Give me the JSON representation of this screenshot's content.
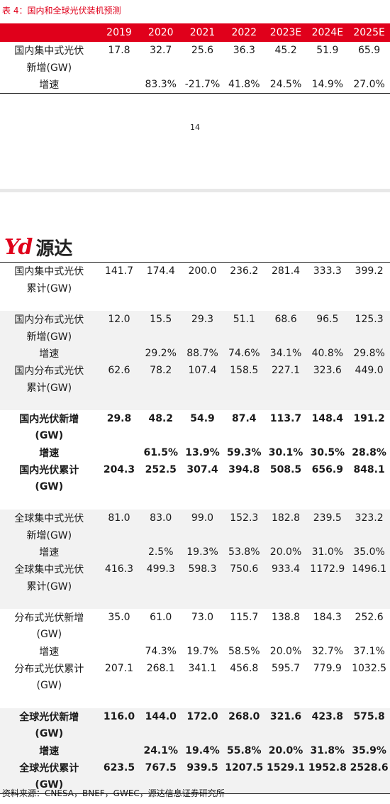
{
  "title": "表 4：国内和全球光伏装机预测",
  "page_number": "14",
  "logo": {
    "mark": "Yd",
    "name": "源达"
  },
  "headers": [
    "",
    "2019",
    "2020",
    "2021",
    "2022",
    "2023E",
    "2024E",
    "2025E"
  ],
  "top_rows": [
    {
      "l1": "国内集中式光伏",
      "l2": "新增(GW)",
      "v": [
        "17.8",
        "32.7",
        "25.6",
        "36.3",
        "45.2",
        "51.9",
        "65.9"
      ]
    },
    {
      "l1": "增速",
      "v": [
        "",
        "83.3%",
        "-21.7%",
        "41.8%",
        "24.5%",
        "14.9%",
        "27.0%"
      ]
    }
  ],
  "groups": [
    {
      "bg": "white",
      "bold": false,
      "rows": [
        {
          "l1": "国内集中式光伏",
          "l2": "累计(GW)",
          "v": [
            "141.7",
            "174.4",
            "200.0",
            "236.2",
            "281.4",
            "333.3",
            "399.2"
          ]
        }
      ]
    },
    {
      "bg": "grp",
      "bold": false,
      "rows": [
        {
          "l1": "国内分布式光伏",
          "l2": "新增(GW)",
          "v": [
            "12.0",
            "15.5",
            "29.3",
            "51.1",
            "68.6",
            "96.5",
            "125.3"
          ]
        },
        {
          "l1": "增速",
          "v": [
            "",
            "29.2%",
            "88.7%",
            "74.6%",
            "34.1%",
            "40.8%",
            "29.8%"
          ]
        },
        {
          "l1": "国内分布式光伏",
          "l2": "累计(GW)",
          "v": [
            "62.6",
            "78.2",
            "107.4",
            "158.5",
            "227.1",
            "323.6",
            "449.0"
          ]
        }
      ]
    },
    {
      "bg": "white",
      "bold": true,
      "rows": [
        {
          "l1": "国内光伏新增",
          "l2": "(GW)",
          "v": [
            "29.8",
            "48.2",
            "54.9",
            "87.4",
            "113.7",
            "148.4",
            "191.2"
          ]
        },
        {
          "l1": "增速",
          "v": [
            "",
            "61.5%",
            "13.9%",
            "59.3%",
            "30.1%",
            "30.5%",
            "28.8%"
          ]
        },
        {
          "l1": "国内光伏累计",
          "l2": "(GW)",
          "v": [
            "204.3",
            "252.5",
            "307.4",
            "394.8",
            "508.5",
            "656.9",
            "848.1"
          ]
        }
      ]
    },
    {
      "bg": "grp",
      "bold": false,
      "rows": [
        {
          "l1": "全球集中式光伏",
          "l2": "新增(GW)",
          "v": [
            "81.0",
            "83.0",
            "99.0",
            "152.3",
            "182.8",
            "239.5",
            "323.2"
          ]
        },
        {
          "l1": "增速",
          "v": [
            "",
            "2.5%",
            "19.3%",
            "53.8%",
            "20.0%",
            "31.0%",
            "35.0%"
          ]
        },
        {
          "l1": "全球集中式光伏",
          "l2": "累计(GW)",
          "v": [
            "416.3",
            "499.3",
            "598.3",
            "750.6",
            "933.4",
            "1172.9",
            "1496.1"
          ]
        }
      ]
    },
    {
      "bg": "white",
      "bold": false,
      "rows": [
        {
          "l1": "分布式光伏新增",
          "l2": "(GW)",
          "v": [
            "35.0",
            "61.0",
            "73.0",
            "115.7",
            "138.8",
            "184.3",
            "252.6"
          ]
        },
        {
          "l1": "增速",
          "v": [
            "",
            "74.3%",
            "19.7%",
            "58.5%",
            "20.0%",
            "32.7%",
            "37.1%"
          ]
        },
        {
          "l1": "分布式光伏累计",
          "l2": "(GW)",
          "v": [
            "207.1",
            "268.1",
            "341.1",
            "456.8",
            "595.7",
            "779.9",
            "1032.5"
          ]
        }
      ]
    },
    {
      "bg": "grp",
      "bold": true,
      "rows": [
        {
          "l1": "全球光伏新增",
          "l2": "(GW)",
          "v": [
            "116.0",
            "144.0",
            "172.0",
            "268.0",
            "321.6",
            "423.8",
            "575.8"
          ]
        },
        {
          "l1": "增速",
          "v": [
            "",
            "24.1%",
            "19.4%",
            "55.8%",
            "20.0%",
            "31.8%",
            "35.9%"
          ]
        },
        {
          "l1": "全球光伏累计",
          "l2": "(GW)",
          "v": [
            "623.5",
            "767.5",
            "939.5",
            "1207.5",
            "1529.1",
            "1952.8",
            "2528.6"
          ]
        }
      ]
    }
  ],
  "source": "资料来源：CNESA，BNEF，GWEC，源达信息证券研究所"
}
